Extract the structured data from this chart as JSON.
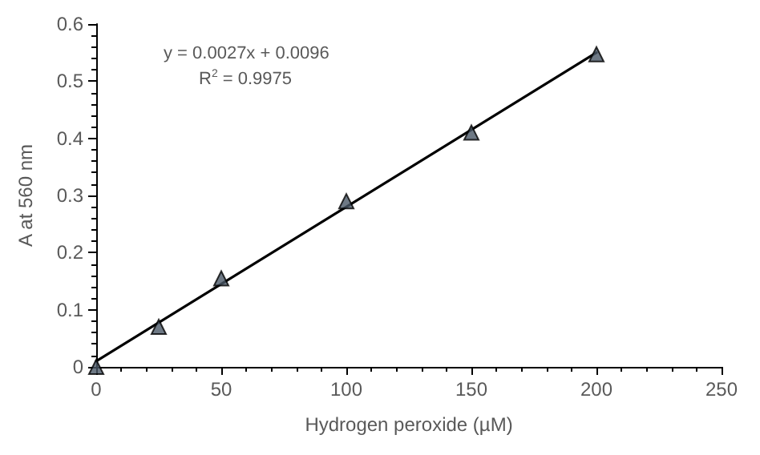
{
  "chart_data": {
    "type": "scatter",
    "xlabel": "Hydrogen peroxide (µM)",
    "ylabel": "A at 560 nm",
    "annotations": [
      "y = 0.0027x + 0.0096",
      "R$^{2}$ = 0.9975"
    ],
    "series": [
      {
        "color": "#4a5866",
        "marker": "triangle",
        "x": [
          0,
          25,
          50,
          100,
          150,
          200
        ],
        "values": [
          0,
          0.07,
          0.155,
          0.29,
          0.41,
          0.547
        ]
      },
      {
        "type": "line",
        "color": "#000000",
        "marker": "none",
        "line_style": "solid",
        "x": [
          0,
          200
        ],
        "values": [
          0.01,
          0.55
        ]
      }
    ],
    "xlim": [
      0,
      250
    ],
    "xticks": [
      0,
      50,
      100,
      150,
      200,
      250
    ],
    "ylim": [
      0,
      0.6
    ],
    "yticks": [
      0,
      0.1,
      0.2,
      0.3,
      0.4,
      0.5,
      0.6
    ],
    "grid": false
  }
}
